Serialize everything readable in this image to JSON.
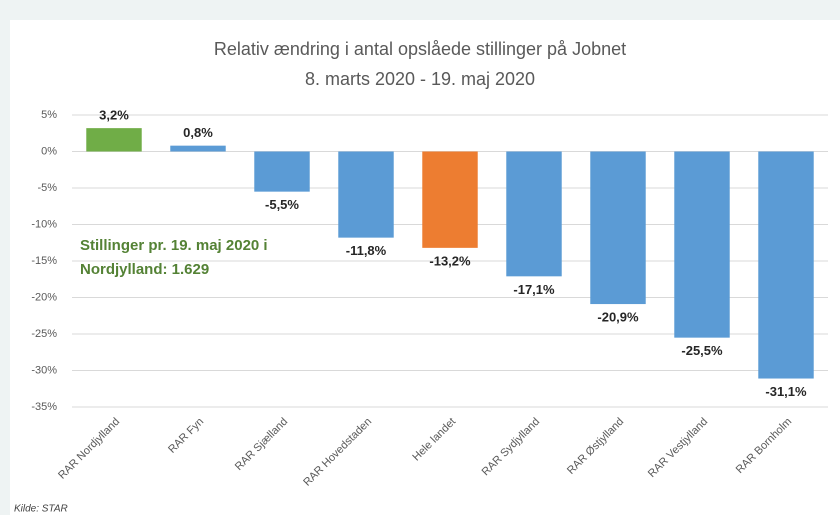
{
  "chart_data": {
    "type": "bar",
    "title": [
      "Relativ ændring i antal opslåede stillinger på Jobnet",
      "8. marts 2020 - 19. maj 2020"
    ],
    "categories": [
      "RAR Nordjylland",
      "RAR Fyn",
      "RAR Sjælland",
      "RAR Hovedstaden",
      "Hele landet",
      "RAR Sydjylland",
      "RAR Østjylland",
      "RAR Vestjylland",
      "RAR Bornholm"
    ],
    "values": [
      3.2,
      0.8,
      -5.5,
      -11.8,
      -13.2,
      -17.1,
      -20.9,
      -25.5,
      -31.1
    ],
    "value_labels": [
      "3,2%",
      "0,8%",
      "-5,5%",
      "-11,8%",
      "-13,2%",
      "-17,1%",
      "-20,9%",
      "-25,5%",
      "-31,1%"
    ],
    "colors": [
      "#70ad47",
      "#5b9bd5",
      "#5b9bd5",
      "#5b9bd5",
      "#ed7d31",
      "#5b9bd5",
      "#5b9bd5",
      "#5b9bd5",
      "#5b9bd5"
    ],
    "ylim": [
      -35,
      5
    ],
    "yticks": [
      {
        "value": 5,
        "label": "5%"
      },
      {
        "value": 0,
        "label": "0%"
      },
      {
        "value": -5,
        "label": "-5%"
      },
      {
        "value": -10,
        "label": "-10%"
      },
      {
        "value": -15,
        "label": "-15%"
      },
      {
        "value": -20,
        "label": "-20%"
      },
      {
        "value": -25,
        "label": "-25%"
      },
      {
        "value": -30,
        "label": "-30%"
      },
      {
        "value": -35,
        "label": "-35%"
      }
    ],
    "grid": true,
    "annotation": [
      "Stillinger pr. 19. maj 2020 i",
      "Nordjylland: 1.629"
    ],
    "source": "Kilde: STAR"
  }
}
